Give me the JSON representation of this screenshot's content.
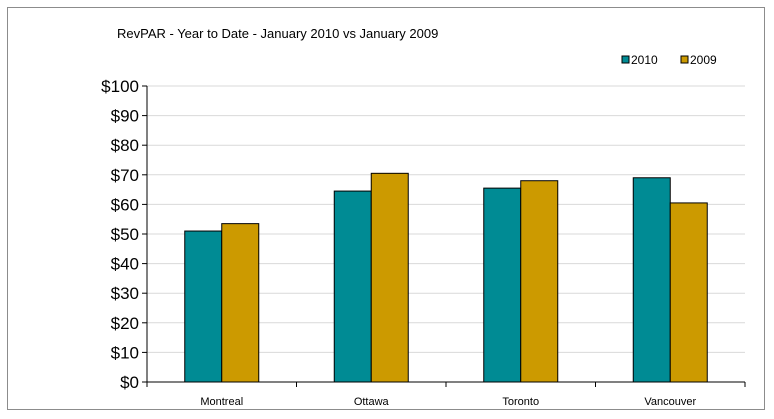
{
  "chart_data": {
    "type": "bar",
    "title": "RevPAR - Year to Date - January 2010 vs January 2009",
    "categories": [
      "Montreal",
      "Ottawa",
      "Toronto",
      "Vancouver"
    ],
    "series": [
      {
        "name": "2010",
        "values": [
          51,
          64.5,
          65.5,
          69
        ],
        "color": "#008b94"
      },
      {
        "name": "2009",
        "values": [
          53.5,
          70.5,
          68,
          60.5
        ],
        "color": "#cc9a00"
      }
    ],
    "ylim": [
      0,
      100
    ],
    "y_ticks": [
      "$0",
      "$10",
      "$20",
      "$30",
      "$40",
      "$50",
      "$60",
      "$70",
      "$80",
      "$90",
      "$100"
    ],
    "xlabel": "",
    "ylabel": "",
    "grid": true,
    "legend_position": "top-right"
  }
}
